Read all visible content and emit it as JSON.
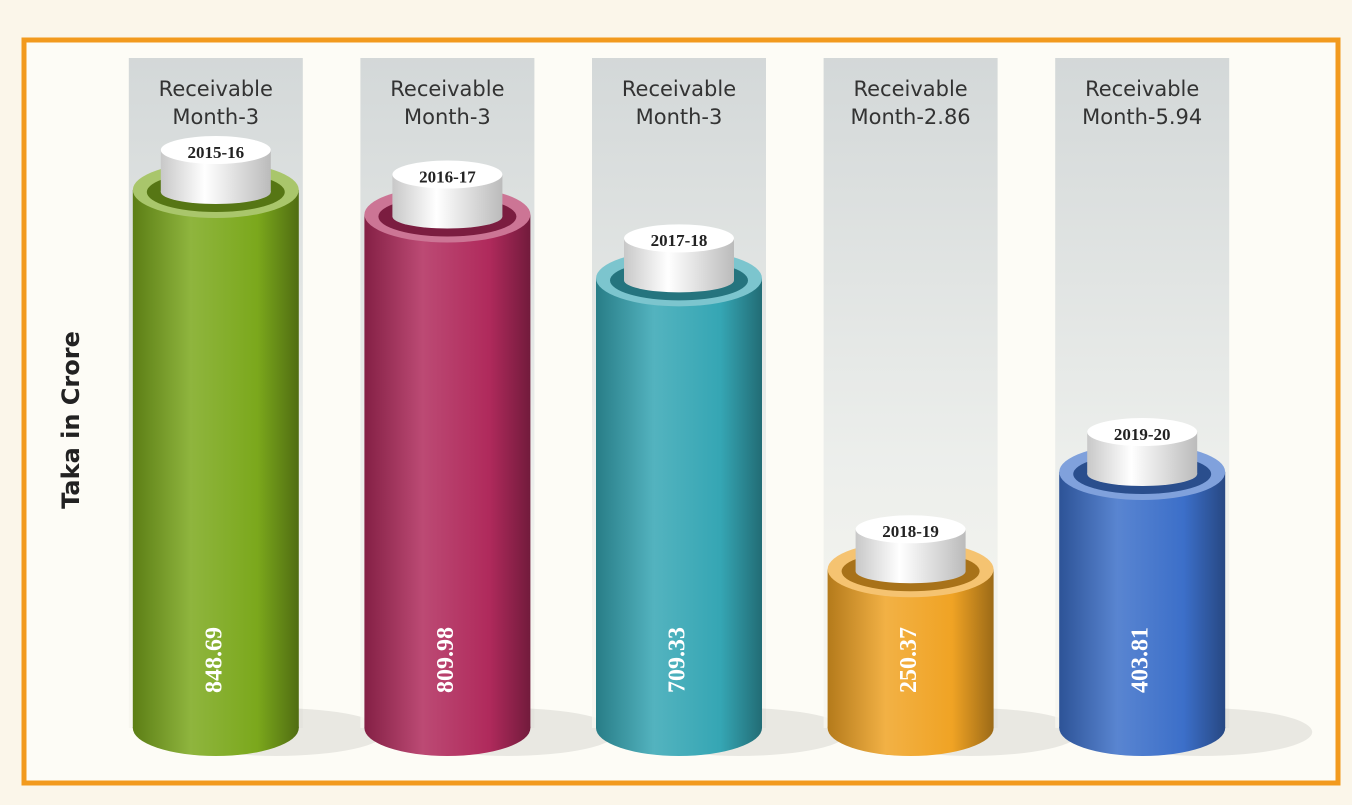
{
  "chart_data": {
    "type": "cylinder-bar",
    "y_label": "Taka in Crore",
    "categories": [
      "2015-16",
      "2016-17",
      "2017-18",
      "2018-19",
      "2019-20"
    ],
    "values": [
      848.69,
      809.98,
      709.33,
      250.37,
      403.81
    ],
    "colors": [
      "#7ba81c",
      "#b02a5c",
      "#35a6b4",
      "#f0a324",
      "#3c6fc9"
    ],
    "annotations": [
      [
        "Receivable",
        "Month-3"
      ],
      [
        "Receivable",
        "Month-3"
      ],
      [
        "Receivable",
        "Month-3"
      ],
      [
        "Receivable",
        "Month-2.86"
      ],
      [
        "Receivable",
        "Month-5.94"
      ]
    ]
  }
}
